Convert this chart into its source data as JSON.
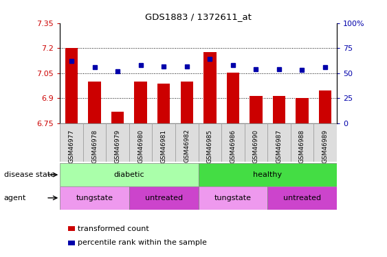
{
  "title": "GDS1883 / 1372611_at",
  "samples": [
    "GSM46977",
    "GSM46978",
    "GSM46979",
    "GSM46980",
    "GSM46981",
    "GSM46982",
    "GSM46985",
    "GSM46986",
    "GSM46990",
    "GSM46987",
    "GSM46988",
    "GSM46989"
  ],
  "bar_values": [
    7.2,
    7.0,
    6.82,
    7.0,
    6.99,
    7.0,
    7.175,
    7.055,
    6.915,
    6.915,
    6.9,
    6.945
  ],
  "dot_values": [
    62,
    56,
    52,
    58,
    57,
    57,
    64,
    58,
    54,
    54,
    53,
    56
  ],
  "ylim_left": [
    6.75,
    7.35
  ],
  "ylim_right": [
    0,
    100
  ],
  "yticks_left": [
    6.75,
    6.9,
    7.05,
    7.2,
    7.35
  ],
  "ytick_labels_left": [
    "6.75",
    "6.9",
    "7.05",
    "7.2",
    "7.35"
  ],
  "yticks_right": [
    0,
    25,
    50,
    75,
    100
  ],
  "ytick_labels_right": [
    "0",
    "25",
    "50",
    "75",
    "100%"
  ],
  "hlines": [
    6.9,
    7.05,
    7.2
  ],
  "bar_color": "#CC0000",
  "dot_color": "#0000AA",
  "bar_width": 0.55,
  "disease_state_labels": [
    {
      "label": "diabetic",
      "start": 0,
      "end": 6,
      "color": "#AAFFAA"
    },
    {
      "label": "healthy",
      "start": 6,
      "end": 12,
      "color": "#44DD44"
    }
  ],
  "agent_labels": [
    {
      "label": "tungstate",
      "start": 0,
      "end": 3,
      "color": "#EE99EE"
    },
    {
      "label": "untreated",
      "start": 3,
      "end": 6,
      "color": "#CC44CC"
    },
    {
      "label": "tungstate",
      "start": 6,
      "end": 9,
      "color": "#EE99EE"
    },
    {
      "label": "untreated",
      "start": 9,
      "end": 12,
      "color": "#CC44CC"
    }
  ],
  "legend_items": [
    {
      "label": "transformed count",
      "color": "#CC0000"
    },
    {
      "label": "percentile rank within the sample",
      "color": "#0000AA"
    }
  ],
  "disease_state_label": "disease state",
  "agent_label": "agent",
  "left_axis_color": "#CC0000",
  "right_axis_color": "#0000AA",
  "tick_label_bg": "#DDDDDD",
  "tick_label_border": "#999999"
}
